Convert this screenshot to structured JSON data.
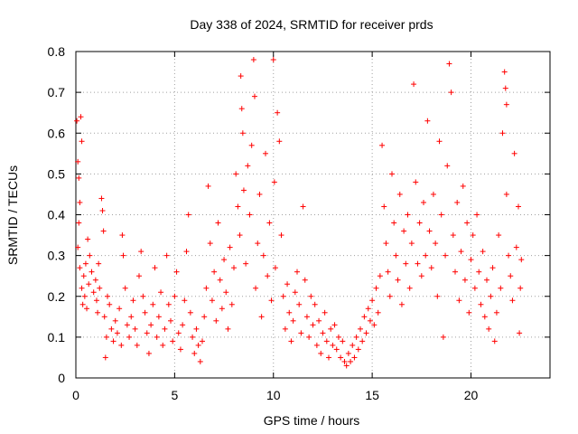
{
  "chart_data": {
    "type": "scatter",
    "title": "Day 338 of 2024, SRMTID for receiver prds",
    "xlabel": "GPS time / hours",
    "ylabel": "SRMTID / TECUs",
    "xlim": [
      0,
      24
    ],
    "ylim": [
      0,
      0.8
    ],
    "xticks": [
      0,
      5,
      10,
      15,
      20
    ],
    "xtick_labels": [
      "0",
      "5",
      "10",
      "15",
      "20"
    ],
    "yticks": [
      0,
      0.1,
      0.2,
      0.3,
      0.4,
      0.5,
      0.6,
      0.7,
      0.8
    ],
    "ytick_labels": [
      "0",
      "0.1",
      "0.2",
      "0.3",
      "0.4",
      "0.5",
      "0.6",
      "0.7",
      "0.8"
    ],
    "grid": true,
    "marker": "+",
    "color": "#ff0000",
    "series": [
      {
        "name": "SRMTID",
        "points": [
          [
            0.05,
            0.63
          ],
          [
            0.1,
            0.53
          ],
          [
            0.15,
            0.49
          ],
          [
            0.2,
            0.43
          ],
          [
            0.25,
            0.64
          ],
          [
            0.3,
            0.58
          ],
          [
            0.15,
            0.38
          ],
          [
            0.1,
            0.32
          ],
          [
            0.2,
            0.27
          ],
          [
            0.3,
            0.22
          ],
          [
            0.35,
            0.18
          ],
          [
            0.4,
            0.25
          ],
          [
            0.45,
            0.2
          ],
          [
            0.5,
            0.28
          ],
          [
            0.55,
            0.17
          ],
          [
            0.6,
            0.34
          ],
          [
            0.65,
            0.23
          ],
          [
            0.7,
            0.3
          ],
          [
            0.8,
            0.26
          ],
          [
            0.9,
            0.21
          ],
          [
            1.0,
            0.24
          ],
          [
            1.05,
            0.19
          ],
          [
            1.1,
            0.16
          ],
          [
            1.15,
            0.28
          ],
          [
            1.2,
            0.22
          ],
          [
            1.3,
            0.44
          ],
          [
            1.35,
            0.41
          ],
          [
            1.4,
            0.36
          ],
          [
            1.45,
            0.15
          ],
          [
            1.5,
            0.05
          ],
          [
            1.55,
            0.1
          ],
          [
            1.6,
            0.2
          ],
          [
            1.7,
            0.18
          ],
          [
            1.8,
            0.12
          ],
          [
            1.9,
            0.09
          ],
          [
            2.0,
            0.14
          ],
          [
            2.1,
            0.11
          ],
          [
            2.2,
            0.17
          ],
          [
            2.3,
            0.08
          ],
          [
            2.35,
            0.35
          ],
          [
            2.4,
            0.3
          ],
          [
            2.5,
            0.22
          ],
          [
            2.6,
            0.13
          ],
          [
            2.7,
            0.1
          ],
          [
            2.8,
            0.15
          ],
          [
            2.9,
            0.19
          ],
          [
            3.0,
            0.12
          ],
          [
            3.1,
            0.08
          ],
          [
            3.2,
            0.25
          ],
          [
            3.3,
            0.31
          ],
          [
            3.4,
            0.2
          ],
          [
            3.5,
            0.16
          ],
          [
            3.6,
            0.11
          ],
          [
            3.7,
            0.06
          ],
          [
            3.8,
            0.13
          ],
          [
            3.9,
            0.18
          ],
          [
            4.0,
            0.27
          ],
          [
            4.1,
            0.1
          ],
          [
            4.2,
            0.15
          ],
          [
            4.3,
            0.21
          ],
          [
            4.4,
            0.08
          ],
          [
            4.5,
            0.12
          ],
          [
            4.6,
            0.3
          ],
          [
            4.7,
            0.18
          ],
          [
            4.8,
            0.14
          ],
          [
            4.9,
            0.09
          ],
          [
            5.0,
            0.2
          ],
          [
            5.1,
            0.26
          ],
          [
            5.2,
            0.11
          ],
          [
            5.3,
            0.07
          ],
          [
            5.4,
            0.13
          ],
          [
            5.5,
            0.19
          ],
          [
            5.6,
            0.31
          ],
          [
            5.7,
            0.4
          ],
          [
            5.8,
            0.16
          ],
          [
            5.9,
            0.1
          ],
          [
            6.0,
            0.06
          ],
          [
            6.1,
            0.12
          ],
          [
            6.2,
            0.08
          ],
          [
            6.3,
            0.04
          ],
          [
            6.4,
            0.09
          ],
          [
            6.5,
            0.15
          ],
          [
            6.6,
            0.22
          ],
          [
            6.7,
            0.47
          ],
          [
            6.8,
            0.33
          ],
          [
            6.9,
            0.19
          ],
          [
            7.0,
            0.26
          ],
          [
            7.1,
            0.14
          ],
          [
            7.2,
            0.38
          ],
          [
            7.3,
            0.24
          ],
          [
            7.4,
            0.17
          ],
          [
            7.5,
            0.29
          ],
          [
            7.6,
            0.21
          ],
          [
            7.7,
            0.12
          ],
          [
            7.8,
            0.32
          ],
          [
            7.9,
            0.18
          ],
          [
            8.0,
            0.27
          ],
          [
            8.1,
            0.5
          ],
          [
            8.2,
            0.42
          ],
          [
            8.3,
            0.35
          ],
          [
            8.35,
            0.74
          ],
          [
            8.4,
            0.66
          ],
          [
            8.45,
            0.6
          ],
          [
            8.5,
            0.46
          ],
          [
            8.6,
            0.28
          ],
          [
            8.7,
            0.52
          ],
          [
            8.8,
            0.4
          ],
          [
            8.9,
            0.57
          ],
          [
            9.0,
            0.78
          ],
          [
            9.05,
            0.69
          ],
          [
            9.1,
            0.22
          ],
          [
            9.2,
            0.33
          ],
          [
            9.3,
            0.45
          ],
          [
            9.4,
            0.15
          ],
          [
            9.5,
            0.3
          ],
          [
            9.6,
            0.55
          ],
          [
            9.7,
            0.25
          ],
          [
            9.8,
            0.38
          ],
          [
            9.9,
            0.19
          ],
          [
            10.0,
            0.78
          ],
          [
            10.05,
            0.48
          ],
          [
            10.1,
            0.27
          ],
          [
            10.2,
            0.65
          ],
          [
            10.3,
            0.58
          ],
          [
            10.4,
            0.35
          ],
          [
            10.5,
            0.2
          ],
          [
            10.6,
            0.12
          ],
          [
            10.7,
            0.23
          ],
          [
            10.8,
            0.16
          ],
          [
            10.9,
            0.09
          ],
          [
            11.0,
            0.14
          ],
          [
            11.1,
            0.21
          ],
          [
            11.2,
            0.26
          ],
          [
            11.3,
            0.18
          ],
          [
            11.4,
            0.11
          ],
          [
            11.5,
            0.42
          ],
          [
            11.6,
            0.24
          ],
          [
            11.7,
            0.15
          ],
          [
            11.8,
            0.1
          ],
          [
            11.9,
            0.2
          ],
          [
            12.0,
            0.13
          ],
          [
            12.1,
            0.18
          ],
          [
            12.2,
            0.08
          ],
          [
            12.3,
            0.14
          ],
          [
            12.4,
            0.06
          ],
          [
            12.5,
            0.11
          ],
          [
            12.6,
            0.16
          ],
          [
            12.7,
            0.09
          ],
          [
            12.8,
            0.05
          ],
          [
            12.9,
            0.12
          ],
          [
            13.0,
            0.08
          ],
          [
            13.1,
            0.13
          ],
          [
            13.2,
            0.07
          ],
          [
            13.3,
            0.1
          ],
          [
            13.4,
            0.05
          ],
          [
            13.5,
            0.09
          ],
          [
            13.6,
            0.04
          ],
          [
            13.7,
            0.03
          ],
          [
            13.8,
            0.06
          ],
          [
            13.9,
            0.04
          ],
          [
            14.0,
            0.08
          ],
          [
            14.1,
            0.05
          ],
          [
            14.2,
            0.1
          ],
          [
            14.3,
            0.07
          ],
          [
            14.4,
            0.12
          ],
          [
            14.5,
            0.09
          ],
          [
            14.6,
            0.15
          ],
          [
            14.7,
            0.11
          ],
          [
            14.8,
            0.17
          ],
          [
            14.9,
            0.14
          ],
          [
            15.0,
            0.19
          ],
          [
            15.1,
            0.13
          ],
          [
            15.2,
            0.22
          ],
          [
            15.3,
            0.16
          ],
          [
            15.4,
            0.25
          ],
          [
            15.5,
            0.57
          ],
          [
            15.6,
            0.42
          ],
          [
            15.7,
            0.33
          ],
          [
            15.8,
            0.26
          ],
          [
            15.9,
            0.2
          ],
          [
            16.0,
            0.5
          ],
          [
            16.1,
            0.38
          ],
          [
            16.2,
            0.3
          ],
          [
            16.3,
            0.24
          ],
          [
            16.4,
            0.45
          ],
          [
            16.5,
            0.18
          ],
          [
            16.6,
            0.36
          ],
          [
            16.7,
            0.28
          ],
          [
            16.8,
            0.4
          ],
          [
            16.9,
            0.22
          ],
          [
            17.0,
            0.33
          ],
          [
            17.1,
            0.72
          ],
          [
            17.2,
            0.48
          ],
          [
            17.3,
            0.28
          ],
          [
            17.4,
            0.38
          ],
          [
            17.5,
            0.25
          ],
          [
            17.6,
            0.43
          ],
          [
            17.7,
            0.3
          ],
          [
            17.8,
            0.63
          ],
          [
            17.9,
            0.36
          ],
          [
            18.0,
            0.27
          ],
          [
            18.1,
            0.45
          ],
          [
            18.2,
            0.33
          ],
          [
            18.3,
            0.2
          ],
          [
            18.4,
            0.58
          ],
          [
            18.5,
            0.4
          ],
          [
            18.6,
            0.1
          ],
          [
            18.7,
            0.3
          ],
          [
            18.8,
            0.52
          ],
          [
            18.9,
            0.77
          ],
          [
            19.0,
            0.7
          ],
          [
            19.1,
            0.35
          ],
          [
            19.2,
            0.26
          ],
          [
            19.3,
            0.43
          ],
          [
            19.4,
            0.19
          ],
          [
            19.5,
            0.31
          ],
          [
            19.6,
            0.47
          ],
          [
            19.7,
            0.24
          ],
          [
            19.8,
            0.38
          ],
          [
            19.9,
            0.16
          ],
          [
            20.0,
            0.29
          ],
          [
            20.1,
            0.35
          ],
          [
            20.2,
            0.22
          ],
          [
            20.3,
            0.4
          ],
          [
            20.4,
            0.26
          ],
          [
            20.5,
            0.18
          ],
          [
            20.6,
            0.31
          ],
          [
            20.7,
            0.15
          ],
          [
            20.8,
            0.24
          ],
          [
            20.9,
            0.12
          ],
          [
            21.0,
            0.2
          ],
          [
            21.1,
            0.27
          ],
          [
            21.2,
            0.09
          ],
          [
            21.3,
            0.16
          ],
          [
            21.4,
            0.35
          ],
          [
            21.5,
            0.22
          ],
          [
            21.6,
            0.6
          ],
          [
            21.7,
            0.75
          ],
          [
            21.8,
            0.45
          ],
          [
            21.9,
            0.3
          ],
          [
            22.0,
            0.25
          ],
          [
            22.1,
            0.19
          ],
          [
            22.2,
            0.55
          ],
          [
            22.3,
            0.32
          ],
          [
            22.4,
            0.42
          ],
          [
            22.5,
            0.22
          ],
          [
            22.55,
            0.29
          ],
          [
            21.8,
            0.67
          ],
          [
            21.75,
            0.71
          ],
          [
            22.45,
            0.11
          ]
        ]
      }
    ]
  }
}
